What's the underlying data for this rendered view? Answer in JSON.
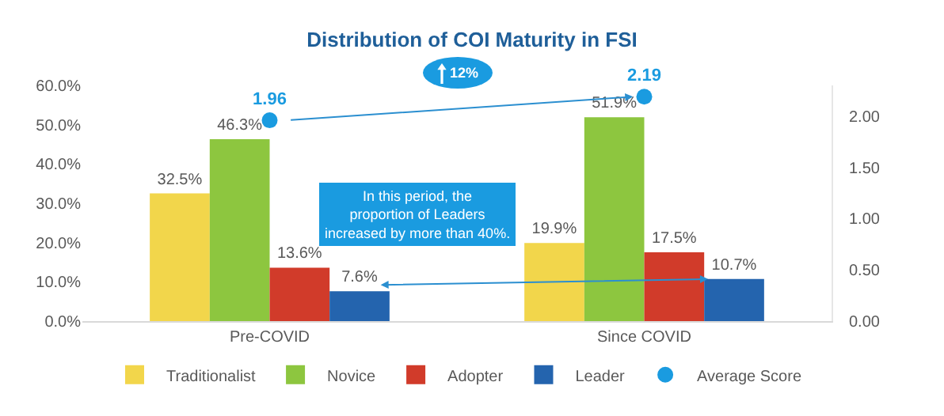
{
  "chart_data": {
    "type": "bar",
    "title": "Distribution of COI Maturity in FSI",
    "categories": [
      "Pre-COVID",
      "Since COVID"
    ],
    "series": [
      {
        "name": "Traditionalist",
        "color": "#f2d64b",
        "values": [
          32.5,
          19.9
        ],
        "value_labels": [
          "32.5%",
          "19.9%"
        ]
      },
      {
        "name": "Novice",
        "color": "#8dc63f",
        "values": [
          46.3,
          51.9
        ],
        "value_labels": [
          "46.3%",
          "51.9%"
        ]
      },
      {
        "name": "Adopter",
        "color": "#d13b2a",
        "values": [
          13.6,
          17.5
        ],
        "value_labels": [
          "13.6%",
          "17.5%"
        ]
      },
      {
        "name": "Leader",
        "color": "#2464ae",
        "values": [
          7.6,
          10.7
        ],
        "value_labels": [
          "7.6%",
          "10.7%"
        ]
      },
      {
        "name": "Average Score",
        "type": "scatter",
        "axis": "y2",
        "marker": "circle",
        "color": "#1a9be0",
        "values": [
          1.96,
          2.19
        ],
        "value_labels": [
          "1.96",
          "2.19"
        ]
      }
    ],
    "ylim": [
      0,
      60
    ],
    "yticks": [
      {
        "value": 0,
        "label": "0.0%"
      },
      {
        "value": 10,
        "label": "10.0%"
      },
      {
        "value": 20,
        "label": "20.0%"
      },
      {
        "value": 30,
        "label": "30.0%"
      },
      {
        "value": 40,
        "label": "40.0%"
      },
      {
        "value": 50,
        "label": "50.0%"
      },
      {
        "value": 60,
        "label": "60.0%"
      }
    ],
    "y2lim": [
      0,
      2.3
    ],
    "y2ticks": [
      {
        "value": 0,
        "label": "0.00"
      },
      {
        "value": 0.5,
        "label": "0.50"
      },
      {
        "value": 1,
        "label": "1.00"
      },
      {
        "value": 1.5,
        "label": "1.50"
      },
      {
        "value": 2,
        "label": "2.00"
      }
    ],
    "annotations": [
      "12%",
      "In this period, the proportion of Leaders increased by more than 40%."
    ],
    "legend": "bottom",
    "grid": false
  }
}
